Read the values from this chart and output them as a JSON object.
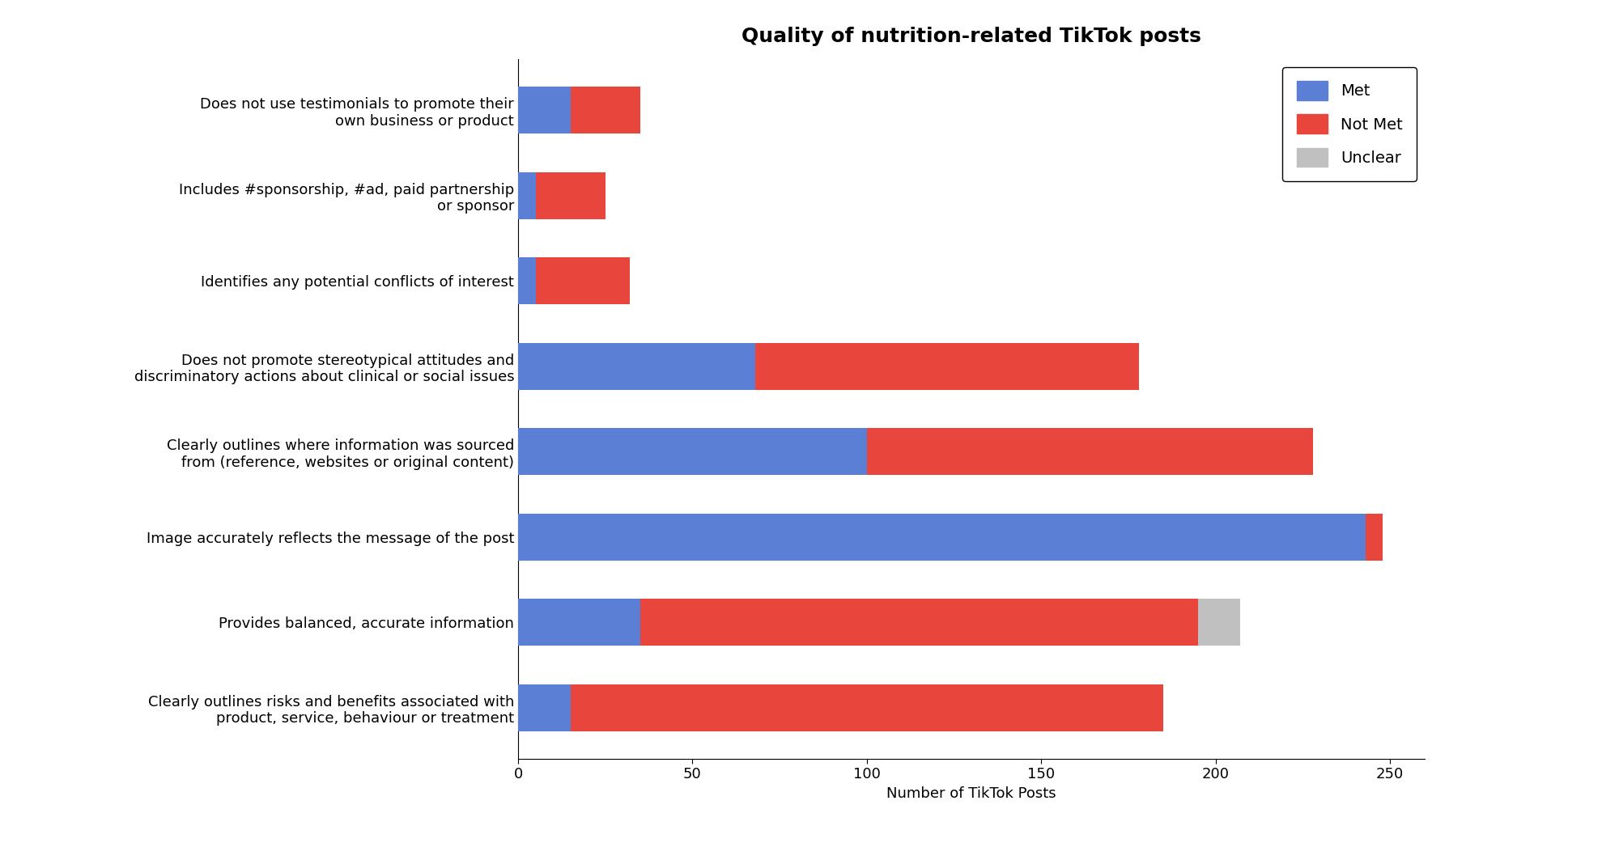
{
  "title": "Quality of nutrition-related TikTok posts",
  "xlabel": "Number of TikTok Posts",
  "categories": [
    "Does not use testimonials to promote their\nown business or product",
    "Includes #sponsorship, #ad, paid partnership\nor sponsor",
    "Identifies any potential conflicts of interest",
    "Does not promote stereotypical attitudes and\ndiscriminatory actions about clinical or social issues",
    "Clearly outlines where information was sourced\nfrom (reference, websites or original content)",
    "Image accurately reflects the message of the post",
    "Provides balanced, accurate information",
    "Clearly outlines risks and benefits associated with\nproduct, service, behaviour or treatment"
  ],
  "met": [
    15,
    5,
    5,
    68,
    100,
    243,
    35,
    15
  ],
  "not_met": [
    20,
    20,
    27,
    110,
    128,
    5,
    160,
    170
  ],
  "unclear": [
    0,
    0,
    0,
    0,
    0,
    0,
    12,
    0
  ],
  "color_met": "#5B7FD4",
  "color_not_met": "#E8453C",
  "color_unclear": "#C0C0C0",
  "xlim": [
    0,
    260
  ],
  "xticks": [
    0,
    50,
    100,
    150,
    200,
    250
  ],
  "legend_labels": [
    "Met",
    "Not Met",
    "Unclear"
  ],
  "title_fontsize": 18,
  "label_fontsize": 13,
  "tick_fontsize": 13,
  "bar_height": 0.55
}
